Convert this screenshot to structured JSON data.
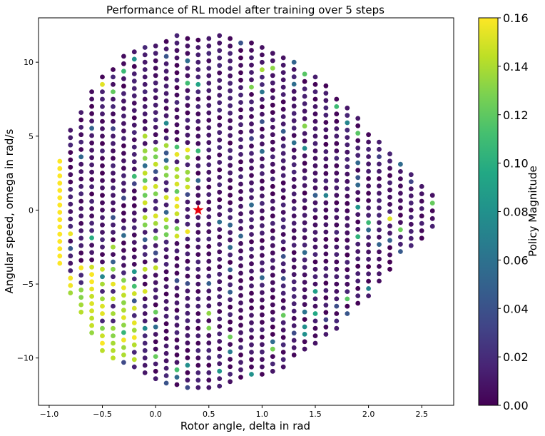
{
  "chart_data": {
    "type": "scatter",
    "title": "Performance of RL model after training over 5 steps",
    "xlabel": "Rotor angle, delta in rad",
    "ylabel": "Angular speed, omega in rad/s",
    "xlim": [
      -1.1,
      2.8
    ],
    "ylim": [
      -13.2,
      13.0
    ],
    "xticks": [
      -1.0,
      -0.5,
      0.0,
      0.5,
      1.0,
      1.5,
      2.0,
      2.5
    ],
    "xtick_labels": [
      "−1.0",
      "−0.5",
      "0.0",
      "0.5",
      "1.0",
      "1.5",
      "2.0",
      "2.5"
    ],
    "yticks": [
      -10,
      -5,
      0,
      5,
      10
    ],
    "ytick_labels": [
      "−10",
      "−5",
      "0",
      "5",
      "10"
    ],
    "colorbar": {
      "label": "Policy Magnitude",
      "colormap": "viridis",
      "range": [
        0.0,
        0.16
      ],
      "ticks": [
        0.0,
        0.02,
        0.04,
        0.06,
        0.08,
        0.1,
        0.12,
        0.14,
        0.16
      ],
      "tick_labels": [
        "0.00",
        "0.02",
        "0.04",
        "0.06",
        "0.08",
        "0.10",
        "0.12",
        "0.14",
        "0.16"
      ]
    },
    "grid": false,
    "marker": {
      "x": 0.4,
      "y": 0.0,
      "shape": "star",
      "color": "#e8000b"
    },
    "series": [
      {
        "columns": [
          {
            "x": -0.9,
            "y_min": -3.6,
            "y_max": 3.3
          },
          {
            "x": -0.8,
            "y_min": -5.6,
            "y_max": 5.4
          },
          {
            "x": -0.7,
            "y_min": -6.9,
            "y_max": 6.6
          },
          {
            "x": -0.6,
            "y_min": -8.3,
            "y_max": 8.0
          },
          {
            "x": -0.5,
            "y_min": -9.5,
            "y_max": 9.0
          },
          {
            "x": -0.4,
            "y_min": -10.0,
            "y_max": 9.5
          },
          {
            "x": -0.3,
            "y_min": -10.3,
            "y_max": 10.4
          },
          {
            "x": -0.2,
            "y_min": -10.6,
            "y_max": 10.7
          },
          {
            "x": -0.1,
            "y_min": -11.0,
            "y_max": 11.0
          },
          {
            "x": 0.0,
            "y_min": -11.4,
            "y_max": 11.1
          },
          {
            "x": 0.1,
            "y_min": -11.7,
            "y_max": 11.4
          },
          {
            "x": 0.2,
            "y_min": -11.8,
            "y_max": 11.8
          },
          {
            "x": 0.3,
            "y_min": -12.0,
            "y_max": 11.6
          },
          {
            "x": 0.4,
            "y_min": -12.0,
            "y_max": 11.5
          },
          {
            "x": 0.5,
            "y_min": -12.0,
            "y_max": 11.6
          },
          {
            "x": 0.6,
            "y_min": -11.9,
            "y_max": 11.8
          },
          {
            "x": 0.7,
            "y_min": -11.6,
            "y_max": 11.6
          },
          {
            "x": 0.8,
            "y_min": -11.3,
            "y_max": 11.3
          },
          {
            "x": 0.9,
            "y_min": -11.1,
            "y_max": 11.3
          },
          {
            "x": 1.0,
            "y_min": -11.1,
            "y_max": 11.0
          },
          {
            "x": 1.1,
            "y_min": -10.9,
            "y_max": 10.6
          },
          {
            "x": 1.2,
            "y_min": -10.6,
            "y_max": 10.3
          },
          {
            "x": 1.3,
            "y_min": -9.8,
            "y_max": 10.0
          },
          {
            "x": 1.4,
            "y_min": -9.4,
            "y_max": 9.2
          },
          {
            "x": 1.5,
            "y_min": -9.0,
            "y_max": 9.0
          },
          {
            "x": 1.6,
            "y_min": -8.4,
            "y_max": 8.4
          },
          {
            "x": 1.7,
            "y_min": -8.0,
            "y_max": 7.5
          },
          {
            "x": 1.8,
            "y_min": -7.0,
            "y_max": 6.9
          },
          {
            "x": 1.9,
            "y_min": -6.3,
            "y_max": 6.2
          },
          {
            "x": 2.0,
            "y_min": -5.8,
            "y_max": 5.1
          },
          {
            "x": 2.1,
            "y_min": -4.8,
            "y_max": 4.6
          },
          {
            "x": 2.2,
            "y_min": -4.0,
            "y_max": 3.8
          },
          {
            "x": 2.3,
            "y_min": -2.8,
            "y_max": 3.1
          },
          {
            "x": 2.4,
            "y_min": -2.4,
            "y_max": 2.4
          },
          {
            "x": 2.5,
            "y_min": -1.9,
            "y_max": 1.6
          },
          {
            "x": 2.6,
            "y_min": -1.1,
            "y_max": 1.0
          }
        ],
        "y_step": 0.5
      }
    ]
  }
}
